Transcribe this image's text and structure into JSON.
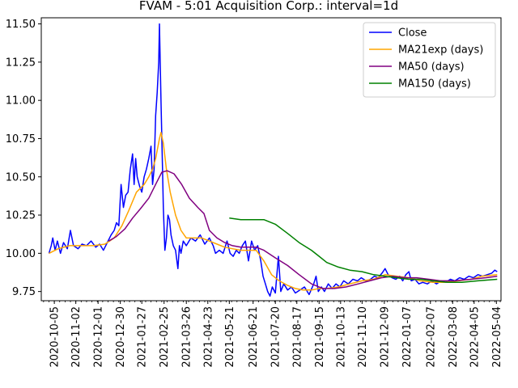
{
  "chart_data": {
    "type": "line",
    "title": "FVAM - 5:01 Acquisition Corp.: interval=1d",
    "xlabel": "",
    "ylabel": "",
    "x_range": [
      "2020-09-18",
      "2022-05-10"
    ],
    "ylim": [
      9.69,
      11.54
    ],
    "yticks": [
      9.75,
      10.0,
      10.25,
      10.5,
      10.75,
      11.0,
      11.25,
      11.5
    ],
    "ytick_labels": [
      "9.75",
      "10.00",
      "10.25",
      "10.50",
      "10.75",
      "11.00",
      "11.25",
      "11.50"
    ],
    "xtick_labels": [
      "2020-10-05",
      "2020-11-02",
      "2020-12-01",
      "2020-12-30",
      "2021-01-27",
      "2021-02-25",
      "2021-03-26",
      "2021-04-23",
      "2021-05-21",
      "2021-06-21",
      "2021-07-20",
      "2021-08-17",
      "2021-09-15",
      "2021-10-13",
      "2021-11-10",
      "2021-12-09",
      "2022-01-07",
      "2022-02-07",
      "2022-03-08",
      "2022-04-05",
      "2022-05-04"
    ],
    "grid": false,
    "legend": "top-right",
    "series": [
      {
        "name": "Close",
        "color": "#0000ff",
        "points": [
          [
            "2020-09-28",
            10.0
          ],
          [
            "2020-10-01",
            10.05
          ],
          [
            "2020-10-03",
            10.1
          ],
          [
            "2020-10-06",
            10.02
          ],
          [
            "2020-10-09",
            10.08
          ],
          [
            "2020-10-13",
            10.0
          ],
          [
            "2020-10-17",
            10.07
          ],
          [
            "2020-10-22",
            10.03
          ],
          [
            "2020-10-26",
            10.15
          ],
          [
            "2020-10-30",
            10.05
          ],
          [
            "2020-11-05",
            10.03
          ],
          [
            "2020-11-10",
            10.06
          ],
          [
            "2020-11-16",
            10.05
          ],
          [
            "2020-11-22",
            10.08
          ],
          [
            "2020-11-28",
            10.04
          ],
          [
            "2020-12-03",
            10.06
          ],
          [
            "2020-12-08",
            10.02
          ],
          [
            "2020-12-14",
            10.08
          ],
          [
            "2020-12-18",
            10.12
          ],
          [
            "2020-12-22",
            10.15
          ],
          [
            "2020-12-25",
            10.2
          ],
          [
            "2020-12-28",
            10.18
          ],
          [
            "2020-12-31",
            10.45
          ],
          [
            "2021-01-03",
            10.3
          ],
          [
            "2021-01-06",
            10.38
          ],
          [
            "2021-01-09",
            10.4
          ],
          [
            "2021-01-12",
            10.55
          ],
          [
            "2021-01-15",
            10.65
          ],
          [
            "2021-01-17",
            10.45
          ],
          [
            "2021-01-19",
            10.62
          ],
          [
            "2021-01-21",
            10.5
          ],
          [
            "2021-01-24",
            10.44
          ],
          [
            "2021-01-27",
            10.4
          ],
          [
            "2021-01-30",
            10.5
          ],
          [
            "2021-02-02",
            10.55
          ],
          [
            "2021-02-05",
            10.62
          ],
          [
            "2021-02-08",
            10.7
          ],
          [
            "2021-02-10",
            10.45
          ],
          [
            "2021-02-12",
            10.55
          ],
          [
            "2021-02-14",
            10.9
          ],
          [
            "2021-02-16",
            11.05
          ],
          [
            "2021-02-18",
            11.25
          ],
          [
            "2021-02-19",
            11.5
          ],
          [
            "2021-02-21",
            11.0
          ],
          [
            "2021-02-23",
            10.55
          ],
          [
            "2021-02-24",
            10.3
          ],
          [
            "2021-02-26",
            10.02
          ],
          [
            "2021-02-28",
            10.1
          ],
          [
            "2021-03-02",
            10.25
          ],
          [
            "2021-03-04",
            10.22
          ],
          [
            "2021-03-06",
            10.12
          ],
          [
            "2021-03-09",
            10.05
          ],
          [
            "2021-03-12",
            10.02
          ],
          [
            "2021-03-15",
            9.9
          ],
          [
            "2021-03-17",
            10.05
          ],
          [
            "2021-03-19",
            10.0
          ],
          [
            "2021-03-22",
            10.08
          ],
          [
            "2021-03-26",
            10.05
          ],
          [
            "2021-04-01",
            10.1
          ],
          [
            "2021-04-07",
            10.08
          ],
          [
            "2021-04-13",
            10.12
          ],
          [
            "2021-04-19",
            10.06
          ],
          [
            "2021-04-25",
            10.1
          ],
          [
            "2021-04-30",
            10.05
          ],
          [
            "2021-05-03",
            10.0
          ],
          [
            "2021-05-08",
            10.02
          ],
          [
            "2021-05-13",
            10.0
          ],
          [
            "2021-05-18",
            10.08
          ],
          [
            "2021-05-22",
            10.0
          ],
          [
            "2021-05-26",
            9.98
          ],
          [
            "2021-05-30",
            10.02
          ],
          [
            "2021-06-03",
            10.0
          ],
          [
            "2021-06-07",
            10.05
          ],
          [
            "2021-06-11",
            10.08
          ],
          [
            "2021-06-15",
            9.95
          ],
          [
            "2021-06-19",
            10.08
          ],
          [
            "2021-06-23",
            10.02
          ],
          [
            "2021-06-27",
            10.05
          ],
          [
            "2021-07-01",
            9.95
          ],
          [
            "2021-07-04",
            9.85
          ],
          [
            "2021-07-07",
            9.8
          ],
          [
            "2021-07-10",
            9.75
          ],
          [
            "2021-07-13",
            9.72
          ],
          [
            "2021-07-16",
            9.78
          ],
          [
            "2021-07-20",
            9.74
          ],
          [
            "2021-07-24",
            9.98
          ],
          [
            "2021-07-27",
            9.75
          ],
          [
            "2021-07-31",
            9.8
          ],
          [
            "2021-08-05",
            9.76
          ],
          [
            "2021-08-10",
            9.78
          ],
          [
            "2021-08-15",
            9.74
          ],
          [
            "2021-08-21",
            9.76
          ],
          [
            "2021-08-27",
            9.78
          ],
          [
            "2021-09-02",
            9.73
          ],
          [
            "2021-09-08",
            9.8
          ],
          [
            "2021-09-11",
            9.85
          ],
          [
            "2021-09-14",
            9.75
          ],
          [
            "2021-09-18",
            9.78
          ],
          [
            "2021-09-22",
            9.75
          ],
          [
            "2021-09-27",
            9.8
          ],
          [
            "2021-10-02",
            9.77
          ],
          [
            "2021-10-07",
            9.8
          ],
          [
            "2021-10-12",
            9.78
          ],
          [
            "2021-10-17",
            9.82
          ],
          [
            "2021-10-23",
            9.8
          ],
          [
            "2021-10-29",
            9.83
          ],
          [
            "2021-11-04",
            9.82
          ],
          [
            "2021-11-09",
            9.84
          ],
          [
            "2021-11-15",
            9.82
          ],
          [
            "2021-11-21",
            9.83
          ],
          [
            "2021-11-26",
            9.85
          ],
          [
            "2021-12-01",
            9.84
          ],
          [
            "2021-12-06",
            9.87
          ],
          [
            "2021-12-10",
            9.9
          ],
          [
            "2021-12-14",
            9.86
          ],
          [
            "2021-12-19",
            9.84
          ],
          [
            "2021-12-24",
            9.83
          ],
          [
            "2021-12-29",
            9.85
          ],
          [
            "2022-01-02",
            9.82
          ],
          [
            "2022-01-06",
            9.86
          ],
          [
            "2022-01-10",
            9.88
          ],
          [
            "2022-01-13",
            9.82
          ],
          [
            "2022-01-18",
            9.83
          ],
          [
            "2022-01-23",
            9.8
          ],
          [
            "2022-01-28",
            9.81
          ],
          [
            "2022-02-03",
            9.8
          ],
          [
            "2022-02-09",
            9.82
          ],
          [
            "2022-02-15",
            9.8
          ],
          [
            "2022-02-21",
            9.82
          ],
          [
            "2022-02-27",
            9.81
          ],
          [
            "2022-03-05",
            9.83
          ],
          [
            "2022-03-11",
            9.82
          ],
          [
            "2022-03-17",
            9.84
          ],
          [
            "2022-03-23",
            9.83
          ],
          [
            "2022-03-29",
            9.85
          ],
          [
            "2022-04-04",
            9.84
          ],
          [
            "2022-04-10",
            9.86
          ],
          [
            "2022-04-16",
            9.85
          ],
          [
            "2022-04-22",
            9.86
          ],
          [
            "2022-04-28",
            9.87
          ],
          [
            "2022-05-02",
            9.89
          ],
          [
            "2022-05-05",
            9.88
          ]
        ]
      },
      {
        "name": "MA21exp (days)",
        "color": "#ffa500",
        "points": [
          [
            "2020-09-28",
            10.0
          ],
          [
            "2020-10-10",
            10.03
          ],
          [
            "2020-10-25",
            10.05
          ],
          [
            "2020-11-10",
            10.05
          ],
          [
            "2020-11-25",
            10.05
          ],
          [
            "2020-12-10",
            10.06
          ],
          [
            "2020-12-22",
            10.1
          ],
          [
            "2021-01-01",
            10.18
          ],
          [
            "2021-01-10",
            10.28
          ],
          [
            "2021-01-20",
            10.4
          ],
          [
            "2021-01-30",
            10.45
          ],
          [
            "2021-02-05",
            10.5
          ],
          [
            "2021-02-10",
            10.55
          ],
          [
            "2021-02-14",
            10.62
          ],
          [
            "2021-02-19",
            10.75
          ],
          [
            "2021-02-21",
            10.79
          ],
          [
            "2021-02-24",
            10.72
          ],
          [
            "2021-02-28",
            10.55
          ],
          [
            "2021-03-05",
            10.4
          ],
          [
            "2021-03-12",
            10.25
          ],
          [
            "2021-03-19",
            10.15
          ],
          [
            "2021-03-26",
            10.1
          ],
          [
            "2021-04-05",
            10.1
          ],
          [
            "2021-04-15",
            10.1
          ],
          [
            "2021-04-25",
            10.08
          ],
          [
            "2021-05-05",
            10.06
          ],
          [
            "2021-05-15",
            10.04
          ],
          [
            "2021-05-25",
            10.03
          ],
          [
            "2021-06-05",
            10.02
          ],
          [
            "2021-06-15",
            10.02
          ],
          [
            "2021-06-25",
            10.02
          ],
          [
            "2021-07-05",
            9.95
          ],
          [
            "2021-07-15",
            9.86
          ],
          [
            "2021-07-25",
            9.82
          ],
          [
            "2021-08-05",
            9.79
          ],
          [
            "2021-08-15",
            9.77
          ],
          [
            "2021-08-25",
            9.76
          ],
          [
            "2021-09-05",
            9.76
          ],
          [
            "2021-09-15",
            9.77
          ],
          [
            "2021-09-25",
            9.77
          ],
          [
            "2021-10-10",
            9.78
          ],
          [
            "2021-10-25",
            9.8
          ],
          [
            "2021-11-10",
            9.82
          ],
          [
            "2021-11-25",
            9.83
          ],
          [
            "2021-12-10",
            9.86
          ],
          [
            "2021-12-25",
            9.85
          ],
          [
            "2022-01-10",
            9.84
          ],
          [
            "2022-01-25",
            9.82
          ],
          [
            "2022-02-10",
            9.81
          ],
          [
            "2022-02-25",
            9.81
          ],
          [
            "2022-03-15",
            9.82
          ],
          [
            "2022-04-01",
            9.83
          ],
          [
            "2022-04-15",
            9.85
          ],
          [
            "2022-05-05",
            9.86
          ]
        ]
      },
      {
        "name": "MA50 (days)",
        "color": "#800080",
        "points": [
          [
            "2020-12-15",
            10.08
          ],
          [
            "2020-12-25",
            10.11
          ],
          [
            "2021-01-05",
            10.16
          ],
          [
            "2021-01-15",
            10.23
          ],
          [
            "2021-01-25",
            10.29
          ],
          [
            "2021-02-05",
            10.36
          ],
          [
            "2021-02-15",
            10.46
          ],
          [
            "2021-02-22",
            10.53
          ],
          [
            "2021-03-01",
            10.54
          ],
          [
            "2021-03-10",
            10.52
          ],
          [
            "2021-03-20",
            10.45
          ],
          [
            "2021-03-30",
            10.36
          ],
          [
            "2021-04-10",
            10.3
          ],
          [
            "2021-04-18",
            10.26
          ],
          [
            "2021-04-25",
            10.15
          ],
          [
            "2021-05-05",
            10.1
          ],
          [
            "2021-05-15",
            10.07
          ],
          [
            "2021-05-25",
            10.05
          ],
          [
            "2021-06-05",
            10.04
          ],
          [
            "2021-06-15",
            10.04
          ],
          [
            "2021-06-25",
            10.04
          ],
          [
            "2021-07-05",
            10.02
          ],
          [
            "2021-07-20",
            9.97
          ],
          [
            "2021-08-05",
            9.92
          ],
          [
            "2021-08-20",
            9.86
          ],
          [
            "2021-09-05",
            9.8
          ],
          [
            "2021-09-20",
            9.77
          ],
          [
            "2021-10-05",
            9.77
          ],
          [
            "2021-10-20",
            9.78
          ],
          [
            "2021-11-05",
            9.8
          ],
          [
            "2021-11-20",
            9.82
          ],
          [
            "2021-12-05",
            9.84
          ],
          [
            "2021-12-20",
            9.85
          ],
          [
            "2022-01-05",
            9.84
          ],
          [
            "2022-01-20",
            9.84
          ],
          [
            "2022-02-05",
            9.83
          ],
          [
            "2022-02-20",
            9.82
          ],
          [
            "2022-03-10",
            9.82
          ],
          [
            "2022-04-01",
            9.83
          ],
          [
            "2022-04-20",
            9.84
          ],
          [
            "2022-05-05",
            9.85
          ]
        ]
      },
      {
        "name": "MA150 (days)",
        "color": "#008000",
        "points": [
          [
            "2021-05-21",
            10.23
          ],
          [
            "2021-06-05",
            10.22
          ],
          [
            "2021-06-20",
            10.22
          ],
          [
            "2021-07-05",
            10.22
          ],
          [
            "2021-07-20",
            10.19
          ],
          [
            "2021-08-05",
            10.13
          ],
          [
            "2021-08-20",
            10.07
          ],
          [
            "2021-09-05",
            10.02
          ],
          [
            "2021-09-15",
            9.98
          ],
          [
            "2021-09-25",
            9.94
          ],
          [
            "2021-10-10",
            9.91
          ],
          [
            "2021-10-25",
            9.89
          ],
          [
            "2021-11-10",
            9.88
          ],
          [
            "2021-11-25",
            9.86
          ],
          [
            "2021-12-10",
            9.85
          ],
          [
            "2021-12-25",
            9.84
          ],
          [
            "2022-01-10",
            9.83
          ],
          [
            "2022-01-25",
            9.83
          ],
          [
            "2022-02-10",
            9.82
          ],
          [
            "2022-03-01",
            9.81
          ],
          [
            "2022-03-20",
            9.81
          ],
          [
            "2022-04-10",
            9.82
          ],
          [
            "2022-05-05",
            9.83
          ]
        ]
      }
    ]
  }
}
